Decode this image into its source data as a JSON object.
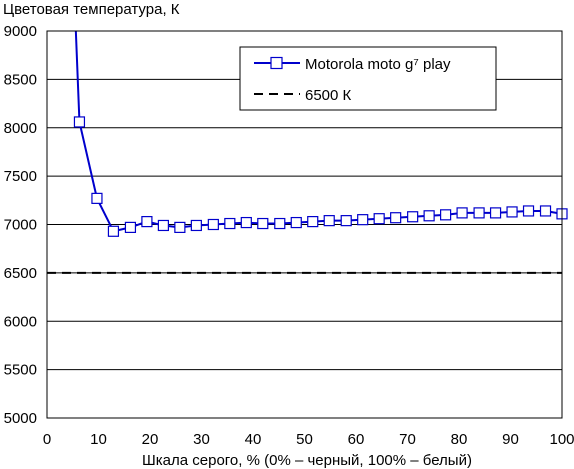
{
  "chart_data": {
    "type": "line",
    "title": "",
    "ylabel": "Цветовая температура, К",
    "xlabel": "Шкала серого, % (0% – черный, 100% – белый)",
    "xlim": [
      0,
      100
    ],
    "ylim": [
      5000,
      9000
    ],
    "x_ticks": [
      0,
      10,
      20,
      30,
      40,
      50,
      60,
      70,
      80,
      90,
      100
    ],
    "y_ticks": [
      5000,
      5500,
      6000,
      6500,
      7000,
      7500,
      8000,
      8500,
      9000
    ],
    "grid": "horizontal",
    "legend_position": "top-right",
    "series": [
      {
        "name": "Motorola moto g⁷ play",
        "color": "#0000cc",
        "marker": "open-square",
        "line_only_points": [
          [
            5.6,
            9000
          ]
        ],
        "x": [
          6.3,
          9.7,
          12.9,
          16.2,
          19.4,
          22.6,
          25.8,
          29.0,
          32.3,
          35.5,
          38.7,
          41.9,
          45.2,
          48.4,
          51.6,
          54.8,
          58.1,
          61.3,
          64.5,
          67.7,
          71.0,
          74.2,
          77.4,
          80.6,
          83.9,
          87.1,
          90.3,
          93.5,
          96.8,
          100
        ],
        "values": [
          8060,
          7270,
          6930,
          6970,
          7030,
          6990,
          6970,
          6990,
          7000,
          7010,
          7020,
          7010,
          7010,
          7020,
          7030,
          7040,
          7040,
          7050,
          7060,
          7070,
          7080,
          7090,
          7100,
          7120,
          7120,
          7120,
          7130,
          7140,
          7140,
          7110
        ]
      },
      {
        "name": "6500 К",
        "color": "#000000",
        "style": "dashed",
        "x": [
          0,
          100
        ],
        "values": [
          6500,
          6500
        ]
      }
    ]
  }
}
